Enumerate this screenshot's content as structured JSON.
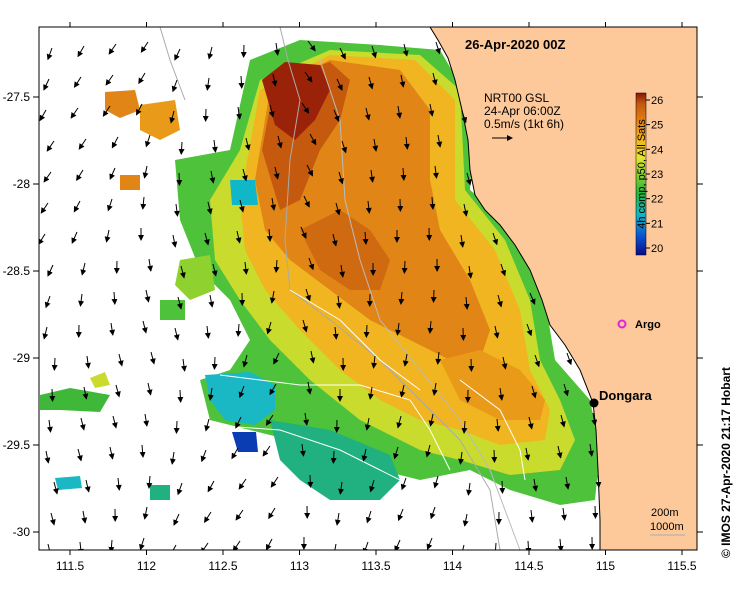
{
  "title": "26-Apr-2020 00Z",
  "current_legend": {
    "line1": "NRT00 GSL",
    "line2": "24-Apr 06:00Z",
    "line3": "0.5m/s (1kt 6h)"
  },
  "colorbar": {
    "label": "4h comp, p50, All Sats",
    "ticks": [
      26,
      25,
      24,
      23,
      22,
      21,
      20
    ],
    "min": 20,
    "max": 26,
    "colors": [
      "#0a0a8c",
      "#0a55d2",
      "#10b7c8",
      "#27b53c",
      "#8fd12f",
      "#e6e630",
      "#f2b21e",
      "#e07a12",
      "#c45a0e",
      "#8c1608"
    ]
  },
  "x_axis": {
    "ticks": [
      "111.5",
      "112",
      "112.5",
      "113",
      "113.5",
      "114",
      "114.5",
      "115",
      "115.5"
    ]
  },
  "y_axis": {
    "ticks": [
      "-27.5",
      "-28",
      "-28.5",
      "-29",
      "-29.5",
      "-30"
    ]
  },
  "labels": {
    "argo": "Argo",
    "dongara": "Dongara",
    "isobath_200": "200m",
    "isobath_1000": "1000m",
    "credit": "© IMOS 27-Apr-2020 21:17 Hobart"
  },
  "colors": {
    "land": "#fdc99a",
    "argo_marker": "#e020e0",
    "station_marker": "#000000"
  }
}
